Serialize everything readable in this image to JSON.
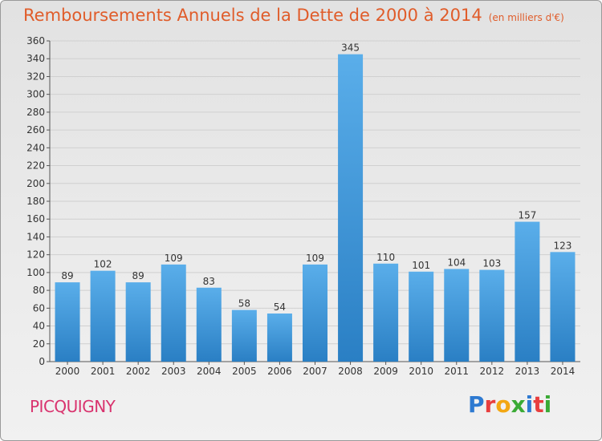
{
  "header": {
    "title": "Remboursements Annuels de la Dette de 2000 à 2014",
    "unit": "(en milliers d'€)"
  },
  "footer": {
    "town": "PICQUIGNY",
    "logo": "Proxiti",
    "logo_colors": [
      "#2e7ad1",
      "#e83e3e",
      "#f3a712",
      "#3aaa35",
      "#2e7ad1",
      "#e83e3e",
      "#3aaa35"
    ]
  },
  "colors": {
    "bar_top": "#5aaeea",
    "bar_bottom": "#2a7fc4",
    "title": "#e05c2a",
    "town": "#d9336e",
    "grid": "#d0d0d0"
  },
  "chart_data": {
    "type": "bar",
    "title": "Remboursements Annuels de la Dette de 2000 à 2014",
    "ylabel": "",
    "xlabel": "",
    "grid": true,
    "ylim": [
      0,
      360
    ],
    "yticks": [
      0,
      20,
      40,
      60,
      80,
      100,
      120,
      140,
      160,
      180,
      200,
      220,
      240,
      260,
      280,
      300,
      320,
      340,
      360
    ],
    "categories": [
      "2000",
      "2001",
      "2002",
      "2003",
      "2004",
      "2005",
      "2006",
      "2007",
      "2008",
      "2009",
      "2010",
      "2011",
      "2012",
      "2013",
      "2014"
    ],
    "values": [
      89,
      102,
      89,
      109,
      83,
      58,
      54,
      109,
      345,
      110,
      101,
      104,
      103,
      157,
      123
    ]
  }
}
